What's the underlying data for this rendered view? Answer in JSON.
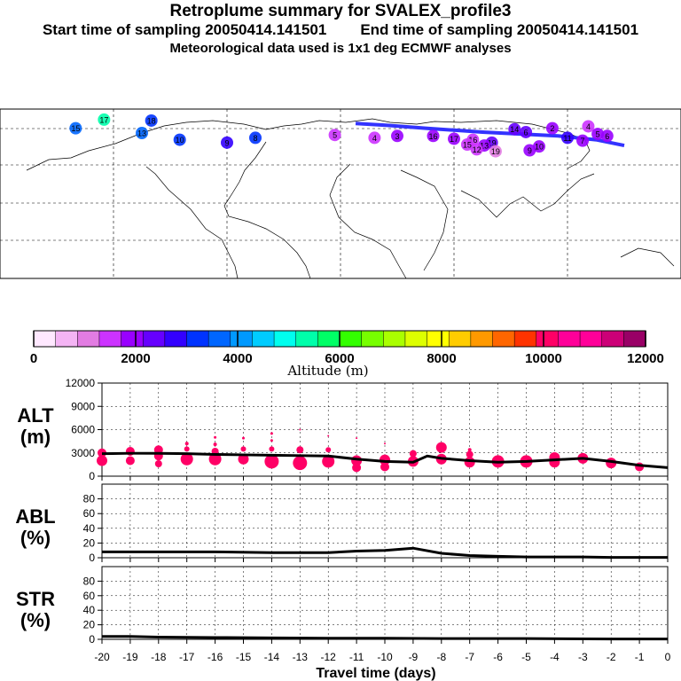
{
  "header": {
    "title": "Retroplume summary for SVALEX_profile3",
    "start_label": "Start time of sampling 20050414.141501",
    "end_label": "End time of sampling 20050414.141501",
    "met_label": "Meteorological data used is 1x1 deg ECMWF analyses"
  },
  "colorbar": {
    "title": "Altitude (m)",
    "ticks": [
      "0",
      "2000",
      "4000",
      "6000",
      "8000",
      "10000",
      "12000"
    ],
    "colors": [
      "#ffe8ff",
      "#f4b4f4",
      "#e27ce2",
      "#cc33ff",
      "#9900ff",
      "#6600ff",
      "#3300ff",
      "#0033ff",
      "#0066ff",
      "#0099ff",
      "#00ccff",
      "#00ffee",
      "#00ffaa",
      "#00ff66",
      "#33ff00",
      "#77ff00",
      "#aaff00",
      "#ddff00",
      "#ffff00",
      "#ffcc00",
      "#ff9900",
      "#ff6600",
      "#ff3300",
      "#ff0066",
      "#ff0099",
      "#ff0099",
      "#cc0077",
      "#990066"
    ]
  },
  "map": {
    "markers": [
      {
        "label": "18",
        "lon": -100,
        "lat": 78,
        "alt": 3200
      },
      {
        "label": "17",
        "lon": -125,
        "lat": 79,
        "alt": 5500
      },
      {
        "label": "15",
        "lon": -140,
        "lat": 70,
        "alt": 3500
      },
      {
        "label": "13",
        "lon": -105,
        "lat": 65,
        "alt": 3800
      },
      {
        "label": "10",
        "lon": -85,
        "lat": 58,
        "alt": 3000
      },
      {
        "label": "9",
        "lon": -60,
        "lat": 55,
        "alt": 2800
      },
      {
        "label": "8",
        "lon": -45,
        "lat": 60,
        "alt": 3100
      },
      {
        "label": "5",
        "lon": -3,
        "lat": 63,
        "alt": 1500
      },
      {
        "label": "4",
        "lon": 18,
        "lat": 60,
        "alt": 1600
      },
      {
        "label": "3",
        "lon": 30,
        "lat": 62,
        "alt": 2000
      },
      {
        "label": "17",
        "lon": 60,
        "lat": 59,
        "alt": 1800
      },
      {
        "label": "16",
        "lon": 70,
        "lat": 58,
        "alt": 1700
      },
      {
        "label": "19",
        "lon": 80,
        "lat": 55,
        "alt": 2300
      },
      {
        "label": "15",
        "lon": 67,
        "lat": 53,
        "alt": 1700
      },
      {
        "label": "13",
        "lon": 76,
        "lat": 52,
        "alt": 1800
      },
      {
        "label": "12",
        "lon": 72,
        "lat": 48,
        "alt": 1600
      },
      {
        "label": "19",
        "lon": 82,
        "lat": 46,
        "alt": 1200
      },
      {
        "label": "9",
        "lon": 100,
        "lat": 47,
        "alt": 1900
      },
      {
        "label": "10",
        "lon": 105,
        "lat": 51,
        "alt": 1800
      },
      {
        "label": "6",
        "lon": 98,
        "lat": 66,
        "alt": 2400
      },
      {
        "label": "2",
        "lon": 112,
        "lat": 70,
        "alt": 1900
      },
      {
        "label": "4",
        "lon": 131,
        "lat": 72,
        "alt": 1700
      },
      {
        "label": "5",
        "lon": 136,
        "lat": 64,
        "alt": 1800
      },
      {
        "label": "6",
        "lon": 141,
        "lat": 62,
        "alt": 1900
      },
      {
        "label": "7",
        "lon": 128,
        "lat": 57,
        "alt": 2000
      },
      {
        "label": "11",
        "lon": 120,
        "lat": 60,
        "alt": 2900
      },
      {
        "label": "14",
        "lon": 92,
        "lat": 69,
        "alt": 2200
      },
      {
        "label": "16",
        "lon": 49,
        "lat": 62,
        "alt": 1800
      }
    ],
    "track_lons": [
      8,
      25,
      45,
      60,
      75,
      95,
      115,
      135,
      150
    ],
    "track_lats": [
      75,
      73,
      70,
      68,
      66,
      64,
      62,
      58,
      52
    ]
  },
  "chart_data": [
    {
      "type": "scatter",
      "panel": "ALT",
      "ylabel": "ALT",
      "ylabel_units": "(m)",
      "xlabel": "Travel time (days)",
      "ylim": [
        0,
        12000
      ],
      "yticks": [
        "0",
        "3000",
        "6000",
        "9000",
        "12000"
      ],
      "xlim": [
        -20,
        0
      ],
      "xticks": [
        "-20",
        "-19",
        "-18",
        "-17",
        "-16",
        "-15",
        "-14",
        "-13",
        "-12",
        "-11",
        "-10",
        "-9",
        "-8",
        "-7",
        "-6",
        "-5",
        "-4",
        "-3",
        "-2",
        "-1",
        "0"
      ],
      "mean_line": {
        "x": [
          -20,
          -19,
          -18,
          -17,
          -16,
          -15,
          -14,
          -13,
          -12,
          -11,
          -10,
          -9,
          -8.5,
          -8,
          -7,
          -6,
          -5,
          -4,
          -3,
          -2,
          -1,
          0
        ],
        "y": [
          2900,
          2950,
          2950,
          2900,
          2800,
          2750,
          2700,
          2650,
          2600,
          2200,
          1900,
          1800,
          2600,
          2300,
          2000,
          1800,
          1900,
          2100,
          2300,
          1900,
          1400,
          1100
        ]
      },
      "clusters": [
        {
          "x": -20,
          "y": 2000,
          "s": 6
        },
        {
          "x": -20,
          "y": 3000,
          "s": 5
        },
        {
          "x": -19,
          "y": 2000,
          "s": 5
        },
        {
          "x": -19,
          "y": 3200,
          "s": 5
        },
        {
          "x": -18,
          "y": 1600,
          "s": 4
        },
        {
          "x": -18,
          "y": 2600,
          "s": 5
        },
        {
          "x": -18,
          "y": 3400,
          "s": 5
        },
        {
          "x": -17,
          "y": 2200,
          "s": 7
        },
        {
          "x": -17,
          "y": 3500,
          "s": 3
        },
        {
          "x": -17,
          "y": 4200,
          "s": 2
        },
        {
          "x": -16,
          "y": 2200,
          "s": 7
        },
        {
          "x": -16,
          "y": 3200,
          "s": 4
        },
        {
          "x": -16,
          "y": 4100,
          "s": 2
        },
        {
          "x": -16,
          "y": 5000,
          "s": 1.5
        },
        {
          "x": -15,
          "y": 2200,
          "s": 6
        },
        {
          "x": -15,
          "y": 3500,
          "s": 3
        },
        {
          "x": -15,
          "y": 4900,
          "s": 1.5
        },
        {
          "x": -14,
          "y": 1900,
          "s": 8
        },
        {
          "x": -14,
          "y": 3500,
          "s": 3
        },
        {
          "x": -14,
          "y": 4600,
          "s": 1.5
        },
        {
          "x": -14,
          "y": 5500,
          "s": 1.5
        },
        {
          "x": -13,
          "y": 1700,
          "s": 8
        },
        {
          "x": -13,
          "y": 3400,
          "s": 4
        },
        {
          "x": -13,
          "y": 6000,
          "s": 1
        },
        {
          "x": -12,
          "y": 1900,
          "s": 7
        },
        {
          "x": -12,
          "y": 3400,
          "s": 3
        },
        {
          "x": -12,
          "y": 5200,
          "s": 1
        },
        {
          "x": -11,
          "y": 1100,
          "s": 5
        },
        {
          "x": -11,
          "y": 2000,
          "s": 6
        },
        {
          "x": -11,
          "y": 4900,
          "s": 1
        },
        {
          "x": -10,
          "y": 1200,
          "s": 5
        },
        {
          "x": -10,
          "y": 2100,
          "s": 6
        },
        {
          "x": -10,
          "y": 4200,
          "s": 1
        },
        {
          "x": -9,
          "y": 1900,
          "s": 6
        },
        {
          "x": -9,
          "y": 2900,
          "s": 4
        },
        {
          "x": -8,
          "y": 2200,
          "s": 6
        },
        {
          "x": -8,
          "y": 3700,
          "s": 6
        },
        {
          "x": -7,
          "y": 1800,
          "s": 6
        },
        {
          "x": -7,
          "y": 2800,
          "s": 4
        },
        {
          "x": -7,
          "y": 3400,
          "s": 2
        },
        {
          "x": -6,
          "y": 1900,
          "s": 7
        },
        {
          "x": -5,
          "y": 1900,
          "s": 7
        },
        {
          "x": -4,
          "y": 1800,
          "s": 6
        },
        {
          "x": -4,
          "y": 2400,
          "s": 6
        },
        {
          "x": -3,
          "y": 2300,
          "s": 6
        },
        {
          "x": -2,
          "y": 1700,
          "s": 6
        },
        {
          "x": -1,
          "y": 1200,
          "s": 5
        }
      ]
    },
    {
      "type": "line",
      "panel": "ABL",
      "ylabel": "ABL",
      "ylabel_units": "(%)",
      "ylim": [
        0,
        100
      ],
      "yticks": [
        "0",
        "20",
        "40",
        "60",
        "80"
      ],
      "x": [
        -20,
        -18,
        -16,
        -14,
        -12,
        -11,
        -10,
        -9,
        -8,
        -7,
        -6,
        -5,
        -4,
        -3,
        -2,
        -1,
        0
      ],
      "y": [
        8,
        8,
        8,
        7,
        7,
        9,
        10,
        13,
        6,
        3,
        2,
        1,
        1,
        1,
        0.5,
        0.5,
        0.5
      ]
    },
    {
      "type": "line",
      "panel": "STR",
      "ylabel": "STR",
      "ylabel_units": "(%)",
      "ylim": [
        0,
        100
      ],
      "yticks": [
        "0",
        "20",
        "40",
        "60",
        "80"
      ],
      "x": [
        -20,
        -19,
        -18,
        -16,
        -14,
        -12,
        -10,
        -8,
        -6,
        -5,
        -2,
        -1,
        0
      ],
      "y": [
        4,
        4,
        3,
        2.5,
        2,
        1.5,
        1.5,
        1,
        1,
        1,
        0.5,
        0.5,
        0.5
      ]
    }
  ]
}
